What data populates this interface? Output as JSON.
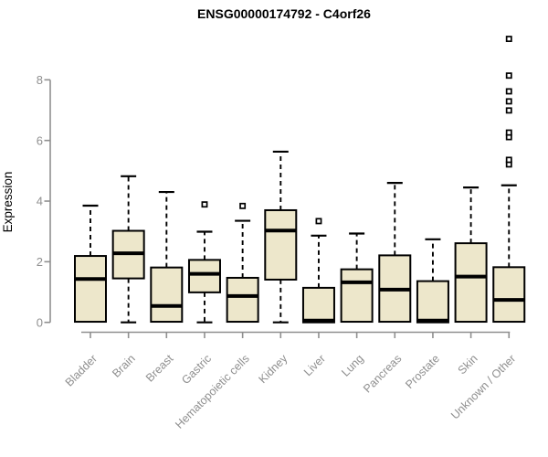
{
  "colors": {
    "background": "#ffffff",
    "box_fill": "#EDE7CB",
    "box_stroke": "#000000",
    "median_stroke": "#000000",
    "whisker_stroke": "#000000",
    "outlier_stroke": "#000000",
    "outlier_fill": "#ffffff",
    "axis": "#8F8F8F",
    "tick_label": "#8F8F8F",
    "title": "#000000"
  },
  "chart_data": {
    "type": "box",
    "title": "ENSG00000174792 - C4orf26",
    "xlabel": "",
    "ylabel": "Expression",
    "ylim": [
      0,
      9.45
    ],
    "yticks": [
      0,
      2,
      4,
      6,
      8
    ],
    "grid": false,
    "legend": false,
    "whisker_style": "dashed",
    "outlier_marker": "open-square",
    "categories": [
      "Bladder",
      "Brain",
      "Breast",
      "Gastric",
      "Hematopoietic cells",
      "Kidney",
      "Liver",
      "Lung",
      "Pancreas",
      "Prostate",
      "Skin",
      "Unknown / Other"
    ],
    "series": [
      {
        "name": "Bladder",
        "low": 0,
        "q1": 0.02,
        "median": 1.43,
        "q3": 2.19,
        "high": 3.85,
        "outliers": []
      },
      {
        "name": "Brain",
        "low": 0,
        "q1": 1.45,
        "median": 2.28,
        "q3": 3.02,
        "high": 4.82,
        "outliers": []
      },
      {
        "name": "Breast",
        "low": 0,
        "q1": 0.02,
        "median": 0.54,
        "q3": 1.81,
        "high": 4.3,
        "outliers": []
      },
      {
        "name": "Gastric",
        "low": 0,
        "q1": 0.99,
        "median": 1.6,
        "q3": 2.06,
        "high": 2.99,
        "outliers": [
          3.89
        ]
      },
      {
        "name": "Hematopoietic cells",
        "low": 0,
        "q1": 0.02,
        "median": 0.87,
        "q3": 1.47,
        "high": 3.35,
        "outliers": [
          3.84
        ]
      },
      {
        "name": "Kidney",
        "low": 0,
        "q1": 1.41,
        "median": 3.03,
        "q3": 3.7,
        "high": 5.63,
        "outliers": []
      },
      {
        "name": "Liver",
        "low": 0,
        "q1": 0.0,
        "median": 0.06,
        "q3": 1.14,
        "high": 2.86,
        "outliers": [
          3.34
        ]
      },
      {
        "name": "Lung",
        "low": 0,
        "q1": 0.02,
        "median": 1.32,
        "q3": 1.75,
        "high": 2.93,
        "outliers": []
      },
      {
        "name": "Pancreas",
        "low": 0,
        "q1": 0.02,
        "median": 1.08,
        "q3": 2.21,
        "high": 4.6,
        "outliers": []
      },
      {
        "name": "Prostate",
        "low": 0,
        "q1": 0.0,
        "median": 0.06,
        "q3": 1.36,
        "high": 2.74,
        "outliers": []
      },
      {
        "name": "Skin",
        "low": 0,
        "q1": 0.02,
        "median": 1.51,
        "q3": 2.61,
        "high": 4.45,
        "outliers": []
      },
      {
        "name": "Unknown / Other",
        "low": 0,
        "q1": 0.02,
        "median": 0.74,
        "q3": 1.82,
        "high": 4.52,
        "outliers": [
          5.21,
          5.36,
          6.11,
          6.26,
          6.99,
          7.29,
          7.62,
          8.14,
          9.35
        ]
      }
    ]
  }
}
